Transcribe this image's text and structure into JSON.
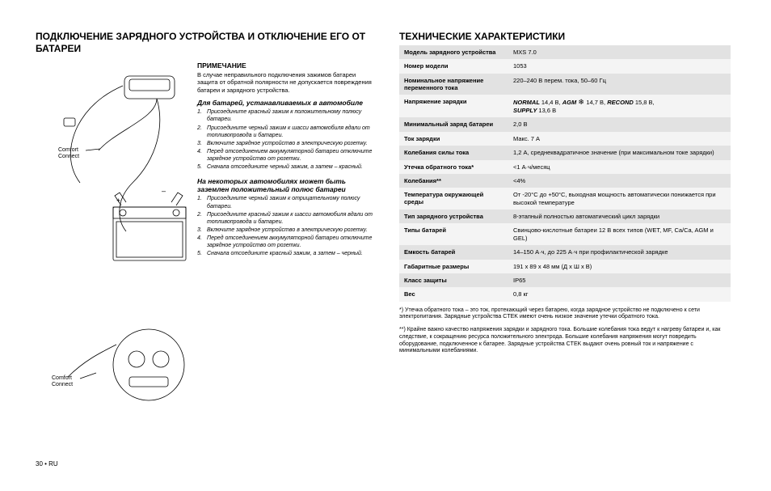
{
  "left": {
    "heading": "ПОДКЛЮЧЕНИЕ ЗАРЯДНОГО УСТРОЙСТВА И ОТКЛЮЧЕНИЕ ЕГО ОТ БАТАРЕИ",
    "note_heading": "ПРИМЕЧАНИЕ",
    "note_body": "В случае неправильного подключения зажимов батареи защита от обратной полярности не допускается повреждения батареи и зарядного устройства.",
    "section_a_head": "Для батарей, устанавливаемых в автомобиле",
    "section_a_steps": [
      "Присоедините красный зажим к положительному полюсу батареи.",
      "Присоедините черный зажим к шасси автомобиля вдали от топливопровода и батареи.",
      "Включите зарядное устройство в электрическую розетку.",
      "Перед отсоединением аккумуляторной батареи отключите зарядное устройство от розетки.",
      "Сначала отсоедините черный зажим, а затем – красный."
    ],
    "section_b_head": "На некоторых автомобилях может быть заземлен положительный полюс батареи",
    "section_b_steps": [
      "Присоедините черный зажим к отрицательному полюсу батареи.",
      "Присоедините красный зажим к шасси автомобиля вдали от топливопровода и батареи.",
      "Включите зарядное устройство в электрическую розетку.",
      "Перед отсоединением аккумуляторной батареи отключите зарядное устройство от розетки.",
      "Сначала отсоедините красный зажим, а затем – черный."
    ],
    "labels": {
      "comfort1a": "Comfort",
      "comfort1b": "Connect",
      "comfort2a": "Comfort",
      "comfort2b": "Connect",
      "plus": "+",
      "minus": "–"
    }
  },
  "right": {
    "heading": "ТЕХНИЧЕСКИЕ ХАРАКТЕРИСТИКИ",
    "rows": [
      {
        "label": "Модель зарядного устройства",
        "value": "MXS 7.0"
      },
      {
        "label": "Номер модели",
        "value": "1053"
      },
      {
        "label": "Номинальное напряжение переменного тока",
        "value": "220–240 В перем. тока, 50–60 Гц"
      },
      {
        "label": "Напряжение зарядки",
        "value_html": true,
        "modes": [
          {
            "name": "NORMAL",
            "v": "14,4 В,"
          },
          {
            "name": "AGM",
            "v": "",
            "snow": true,
            "v2": "14,7 В,"
          },
          {
            "name": "RECOND",
            "v": "15,8 В,"
          },
          {
            "name": "SUPPLY",
            "v": "13,6 В"
          }
        ]
      },
      {
        "label": "Минимальный заряд батареи",
        "value": "2,0 В"
      },
      {
        "label": "Ток зарядки",
        "value": "Макс. 7 A"
      },
      {
        "label": "Колебания силы тока",
        "value": "1,2 А, среднеквадратичное значение (при максимальном токе зарядки)"
      },
      {
        "label": "Утечка обратного тока*",
        "value": "<1 А·ч/месяц"
      },
      {
        "label": "Колебания**",
        "value": "<4%"
      },
      {
        "label": "Температура окружающей среды",
        "value": "От -20°C до +50°C, выходная мощность автоматически понижается при высокой температуре"
      },
      {
        "label": "Тип зарядного устройства",
        "value": "8-этапный полностью автоматический цикл зарядки"
      },
      {
        "label": "Типы батарей",
        "value": "Свинцово-кислотные батареи 12 В всех типов (WET, MF, Ca/Ca, AGM и GEL)"
      },
      {
        "label": "Емкость батарей",
        "value": "14–150 А·ч, до 225 А·ч при профилактической зарядке"
      },
      {
        "label": "Габаритные размеры",
        "value": "191 x 89 x 48 мм (Д x Ш x В)"
      },
      {
        "label": "Класс защиты",
        "value": "IP65"
      },
      {
        "label": "Вес",
        "value": "0,8 кг"
      }
    ],
    "footnote1": "*) Утечка обратного тока – это ток, протекающий через батарею, когда зарядное устройство не подключено к сети электропитания. Зарядные устройства CTEK имеют очень низкое значение утечки обратного тока.",
    "footnote2": "**) Крайне важно качество напряжения зарядки и зарядного тока. Большие колебания тока ведут к нагреву батареи и, как следствие, к сокращению ресурса положительного электрода. Большие колебания напряжения могут повредить оборудование, подключенное к батарее. Зарядные устройства CTEK выдают очень ровный ток и напряжение с минимальными колебаниями."
  },
  "pagenum": "30 • RU"
}
